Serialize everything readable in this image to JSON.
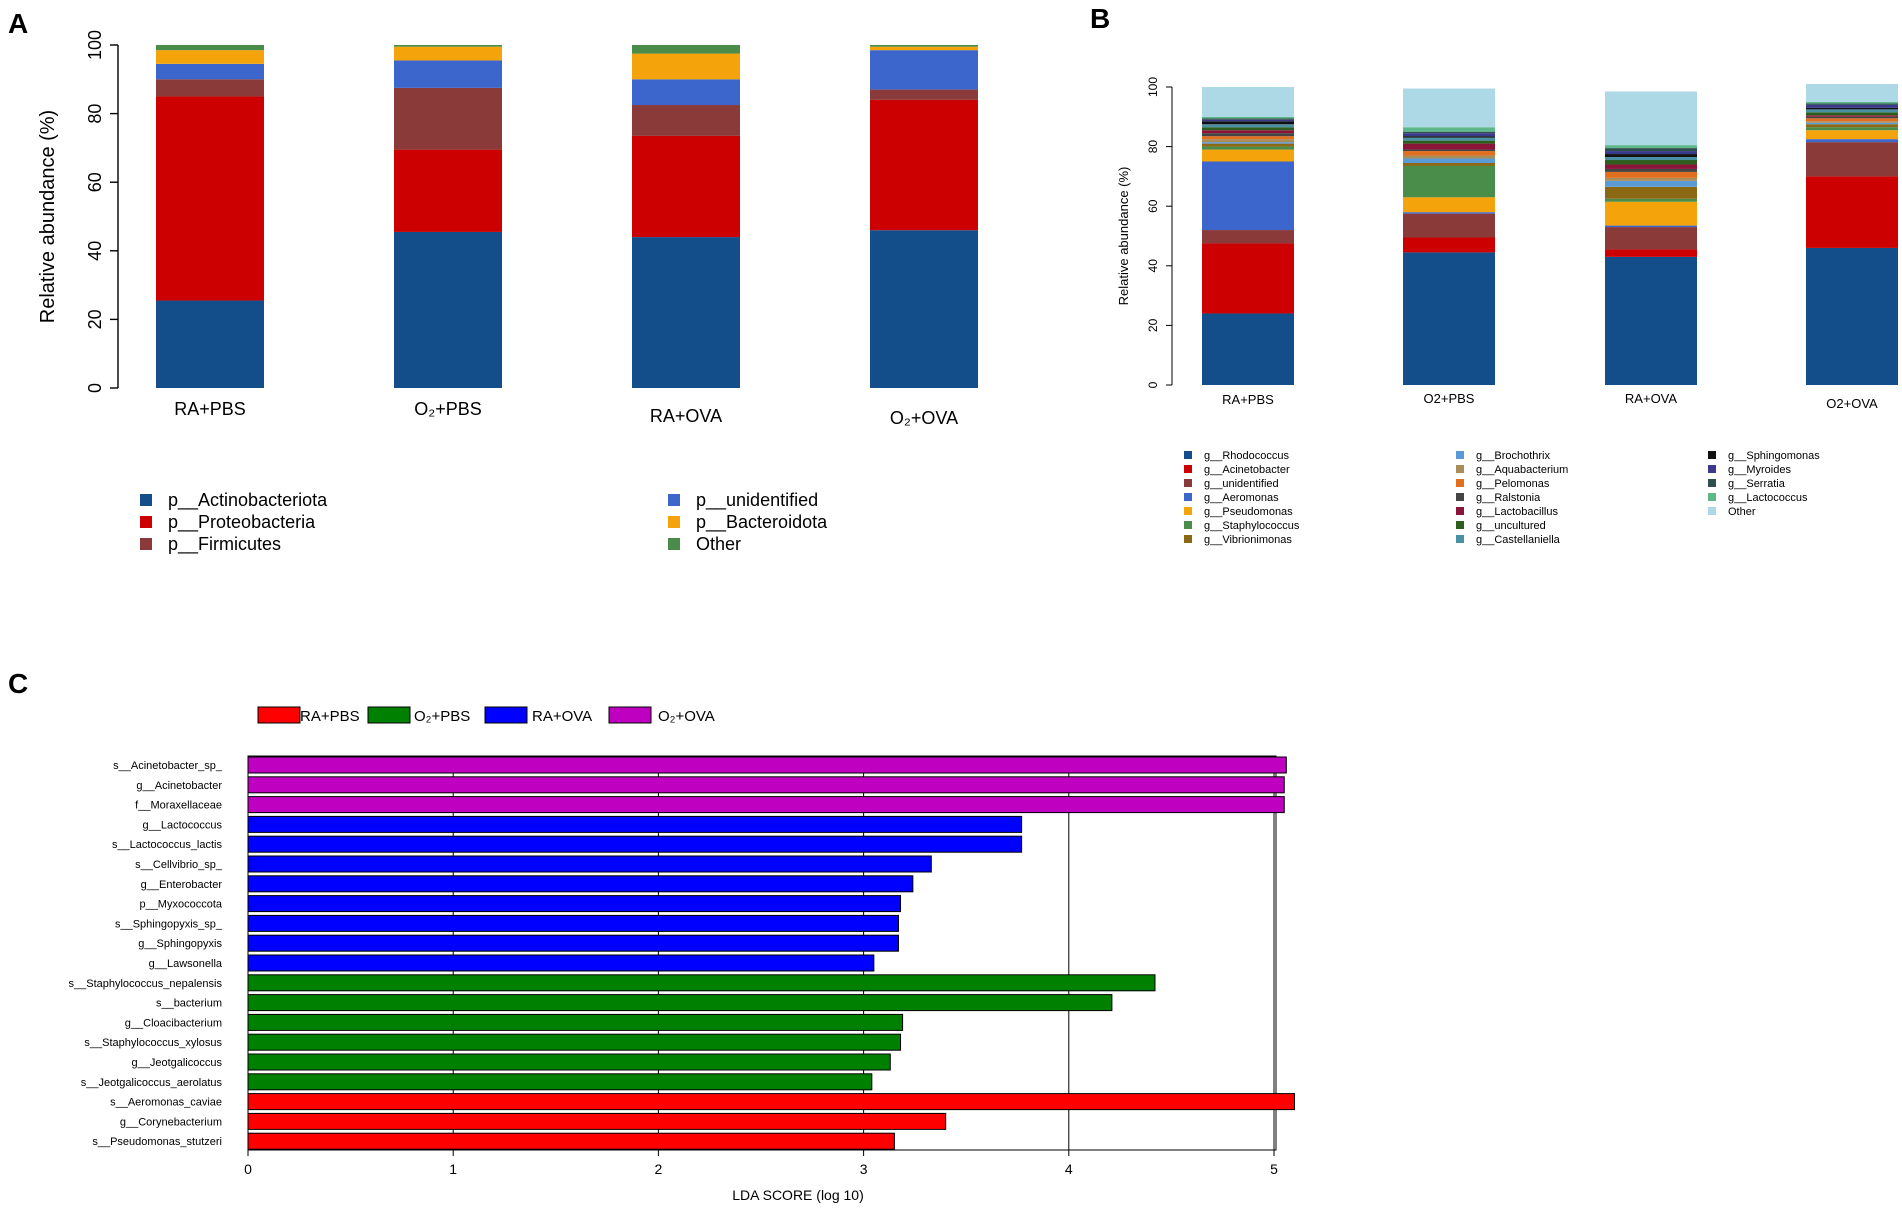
{
  "chart_data": [
    {
      "panel": "A",
      "type": "bar",
      "stacked": true,
      "ylabel": "Relative abundance (%)",
      "ylim": [
        0,
        100
      ],
      "yticks": [
        "0",
        "20",
        "40",
        "60",
        "80",
        "100"
      ],
      "categories": [
        "RA+PBS",
        "O₂+PBS",
        "RA+OVA",
        "O₂+OVA"
      ],
      "series": [
        {
          "name": "p__Actinobacteriota",
          "color": "#134e8a",
          "values": [
            25.5,
            45.5,
            44,
            46
          ]
        },
        {
          "name": "p__Proteobacteria",
          "color": "#cc0000",
          "values": [
            59.5,
            24,
            29.5,
            38
          ]
        },
        {
          "name": "p__Firmicutes",
          "color": "#8b3a3a",
          "values": [
            5,
            18,
            9,
            3
          ]
        },
        {
          "name": "p__unidentified",
          "color": "#3d66cc",
          "values": [
            4.5,
            8,
            7.5,
            11.5
          ]
        },
        {
          "name": "p__Bacteroidota",
          "color": "#f5a30a",
          "values": [
            4,
            4,
            7.5,
            1
          ]
        },
        {
          "name": "Other",
          "color": "#4a8c4a",
          "values": [
            1.5,
            0.5,
            2.5,
            0.5
          ]
        }
      ]
    },
    {
      "panel": "B",
      "type": "bar",
      "stacked": true,
      "ylabel": "Relative abundance (%)",
      "ylim": [
        0,
        100
      ],
      "yticks": [
        "0",
        "20",
        "40",
        "60",
        "80",
        "100"
      ],
      "categories": [
        "RA+PBS",
        "O2+PBS",
        "RA+OVA",
        "O2+OVA"
      ],
      "series": [
        {
          "name": "g__Rhodococcus",
          "color": "#134e8a",
          "values": [
            24,
            44.5,
            43,
            46
          ]
        },
        {
          "name": "g__Acinetobacter",
          "color": "#cc0000",
          "values": [
            23.5,
            5,
            2.5,
            24
          ]
        },
        {
          "name": "g__unidentified",
          "color": "#8b3a3a",
          "values": [
            4.5,
            8,
            7.5,
            11.5
          ]
        },
        {
          "name": "g__Aeromonas",
          "color": "#3d66cc",
          "values": [
            23,
            0.5,
            0.5,
            1
          ]
        },
        {
          "name": "g__Pseudomonas",
          "color": "#f5a30a",
          "values": [
            4,
            5,
            8,
            3
          ]
        },
        {
          "name": "g__Staphylococcus",
          "color": "#4a8c4a",
          "values": [
            1,
            10.5,
            1,
            1
          ]
        },
        {
          "name": "g__Vibrionimonas",
          "color": "#8b6914",
          "values": [
            1,
            1,
            4,
            1
          ]
        },
        {
          "name": "g__Brochothrix",
          "color": "#5b9bd5",
          "values": [
            0.5,
            1.5,
            2,
            0.5
          ]
        },
        {
          "name": "g__Aquabacterium",
          "color": "#a88d5a",
          "values": [
            1,
            1,
            1,
            0.5
          ]
        },
        {
          "name": "g__Pelomonas",
          "color": "#e07020",
          "values": [
            1,
            1.5,
            2,
            1
          ]
        },
        {
          "name": "g__Ralstonia",
          "color": "#444444",
          "values": [
            1,
            0.5,
            1,
            0.5
          ]
        },
        {
          "name": "g__Lactobacillus",
          "color": "#8b1538",
          "values": [
            1,
            2,
            1.5,
            0.5
          ]
        },
        {
          "name": "g__uncultured",
          "color": "#2e5e1e",
          "values": [
            1,
            1,
            1.5,
            1
          ]
        },
        {
          "name": "g__Castellaniella",
          "color": "#4a90a4",
          "values": [
            1,
            1,
            1,
            1
          ]
        },
        {
          "name": "g__Sphingomonas",
          "color": "#111111",
          "values": [
            1,
            0.5,
            1,
            0.5
          ]
        },
        {
          "name": "g__Myroides",
          "color": "#3a3a8c",
          "values": [
            0.5,
            1,
            1,
            1
          ]
        },
        {
          "name": "g__Serratia",
          "color": "#2f4f4f",
          "values": [
            0.5,
            0.5,
            1,
            0.5
          ]
        },
        {
          "name": "g__Lactococcus",
          "color": "#5fb88a",
          "values": [
            0.5,
            1.5,
            1,
            0.5
          ]
        },
        {
          "name": "Other",
          "color": "#add8e6",
          "values": [
            10,
            13,
            18,
            6
          ]
        }
      ]
    },
    {
      "panel": "C",
      "type": "bar",
      "orientation": "horizontal",
      "xlabel": "LDA SCORE (log 10)",
      "xlim": [
        0,
        5.2
      ],
      "xticks": [
        "0",
        "1",
        "2",
        "3",
        "4",
        "5"
      ],
      "groups": [
        {
          "name": "RA+PBS",
          "color": "#ff0000"
        },
        {
          "name": "O₂+PBS",
          "color": "#008000"
        },
        {
          "name": "RA+OVA",
          "color": "#0000ff"
        },
        {
          "name": "O₂+OVA",
          "color": "#c000c0"
        }
      ],
      "bars": [
        {
          "label": "s__Acinetobacter_sp_",
          "value": 5.06,
          "group": 3
        },
        {
          "label": "g__Acinetobacter",
          "value": 5.05,
          "group": 3
        },
        {
          "label": "f__Moraxellaceae",
          "value": 5.05,
          "group": 3
        },
        {
          "label": "g__Lactococcus",
          "value": 3.77,
          "group": 2
        },
        {
          "label": "s__Lactococcus_lactis",
          "value": 3.77,
          "group": 2
        },
        {
          "label": "s__Cellvibrio_sp_",
          "value": 3.33,
          "group": 2
        },
        {
          "label": "g__Enterobacter",
          "value": 3.24,
          "group": 2
        },
        {
          "label": "p__Myxococcota",
          "value": 3.18,
          "group": 2
        },
        {
          "label": "s__Sphingopyxis_sp_",
          "value": 3.17,
          "group": 2
        },
        {
          "label": "g__Sphingopyxis",
          "value": 3.17,
          "group": 2
        },
        {
          "label": "g__Lawsonella",
          "value": 3.05,
          "group": 2
        },
        {
          "label": "s__Staphylococcus_nepalensis",
          "value": 4.42,
          "group": 1
        },
        {
          "label": "s__bacterium",
          "value": 4.21,
          "group": 1
        },
        {
          "label": "g__Cloacibacterium",
          "value": 3.19,
          "group": 1
        },
        {
          "label": "s__Staphylococcus_xylosus",
          "value": 3.18,
          "group": 1
        },
        {
          "label": "g__Jeotgalicoccus",
          "value": 3.13,
          "group": 1
        },
        {
          "label": "s__Jeotgalicoccus_aerolatus",
          "value": 3.04,
          "group": 1
        },
        {
          "label": "s__Aeromonas_caviae",
          "value": 5.1,
          "group": 0
        },
        {
          "label": "g__Corynebacterium",
          "value": 3.4,
          "group": 0
        },
        {
          "label": "s__Pseudomonas_stutzeri",
          "value": 3.15,
          "group": 0
        }
      ]
    }
  ],
  "panel_labels": [
    "A",
    "B",
    "C"
  ]
}
